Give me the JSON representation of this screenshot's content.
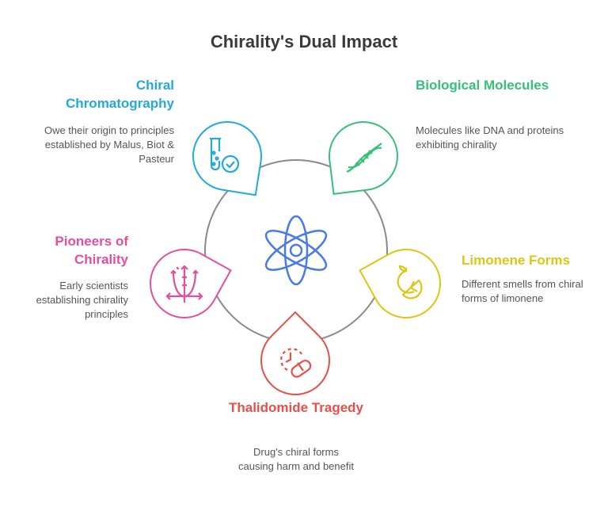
{
  "title": "Chirality's Dual Impact",
  "colors": {
    "blue": "#22a9dc",
    "green": "#35c07a",
    "pink": "#e04fa0",
    "yellow": "#dcc614",
    "red": "#e5504a",
    "atom": "#4a7be0",
    "ring": "#8a8a8a"
  },
  "items": [
    {
      "title": "Chiral Chromatography",
      "desc": "Owe their origin to principles established by Malus, Biot & Pasteur",
      "icon": "test-tube-check-icon"
    },
    {
      "title": "Biological Molecules",
      "desc": "Molecules like DNA and proteins exhibiting chirality",
      "icon": "dna-icon"
    },
    {
      "title": "Pioneers of Chirality",
      "desc": "Early scientists establishing chirality principles",
      "icon": "graph-curves-icon"
    },
    {
      "title": "Limonene Forms",
      "desc": "Different smells from chiral forms of limonene",
      "icon": "citrus-icon"
    },
    {
      "title": "Thalidomide Tragedy",
      "desc": "Drug's chiral forms causing harm and benefit",
      "icon": "pill-clock-icon"
    }
  ],
  "center_icon": "atom-icon"
}
